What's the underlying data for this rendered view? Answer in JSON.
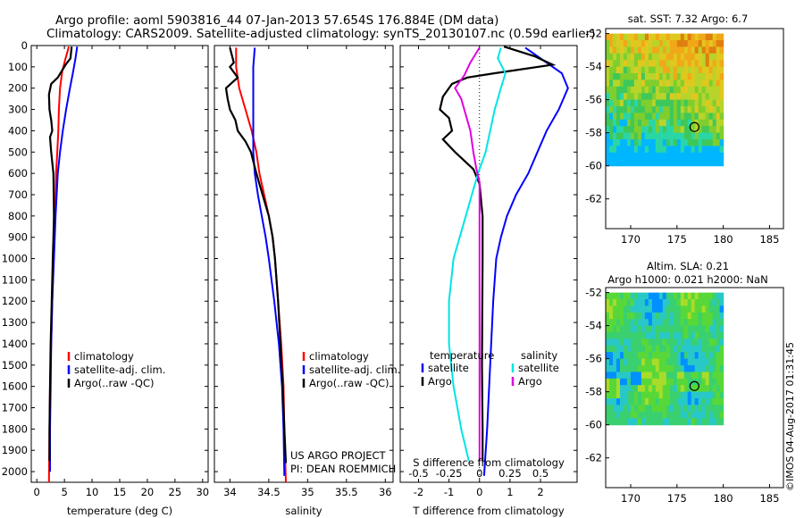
{
  "figure": {
    "title_line1": "Argo profile: aoml 5903816_44 07-Jan-2013 57.654S 176.884E (DM data)",
    "title_line2": "Climatology: CARS2009. Satellite-adjusted climatology: synTS_20130107.nc (0.59d earlier)",
    "credit": "©IMOS 04-Aug-2017 01:31:45",
    "project_line1": "US ARGO PROJECT",
    "project_line2": "PI: DEAN ROEMMICH"
  },
  "colors": {
    "climatology": "#ff0000",
    "satellite": "#0000ff",
    "argo": "#000000",
    "s_satellite": "#00e5e5",
    "s_argo": "#e000e0"
  },
  "chart_data": [
    {
      "type": "line",
      "title": "",
      "xlabel": "temperature (deg C)",
      "ylabel": "",
      "xlim": [
        -1,
        31
      ],
      "ylim": [
        2050,
        0
      ],
      "xticks": [
        "0",
        "5",
        "10",
        "15",
        "20",
        "25",
        "30"
      ],
      "yticks": [
        "0",
        "100",
        "200",
        "300",
        "400",
        "500",
        "600",
        "700",
        "800",
        "900",
        "1000",
        "1100",
        "1200",
        "1300",
        "1400",
        "1500",
        "1600",
        "1700",
        "1800",
        "1900",
        "2000"
      ],
      "legend": [
        "climatology",
        "satellite-adj. clim.",
        "Argo(..raw -QC)"
      ],
      "series": [
        {
          "name": "climatology",
          "color": "climatology",
          "points": [
            [
              5.8,
              5
            ],
            [
              5.2,
              60
            ],
            [
              4.6,
              120
            ],
            [
              4.2,
              200
            ],
            [
              4.0,
              300
            ],
            [
              3.9,
              400
            ],
            [
              3.7,
              500
            ],
            [
              3.5,
              600
            ],
            [
              3.3,
              800
            ],
            [
              3.0,
              1000
            ],
            [
              2.8,
              1200
            ],
            [
              2.6,
              1400
            ],
            [
              2.4,
              1600
            ],
            [
              2.3,
              1800
            ],
            [
              2.2,
              2050
            ]
          ]
        },
        {
          "name": "satellite-adj. clim.",
          "color": "satellite",
          "points": [
            [
              7.3,
              5
            ],
            [
              7.0,
              60
            ],
            [
              6.6,
              120
            ],
            [
              6.0,
              200
            ],
            [
              5.3,
              300
            ],
            [
              4.7,
              400
            ],
            [
              4.2,
              500
            ],
            [
              3.8,
              600
            ],
            [
              3.4,
              800
            ],
            [
              3.1,
              1000
            ],
            [
              2.8,
              1200
            ],
            [
              2.6,
              1400
            ],
            [
              2.5,
              1600
            ],
            [
              2.4,
              1800
            ],
            [
              2.4,
              2000
            ]
          ]
        },
        {
          "name": "Argo(..raw -QC)",
          "color": "argo",
          "points": [
            [
              6.3,
              5
            ],
            [
              6.1,
              60
            ],
            [
              5.2,
              90
            ],
            [
              3.8,
              150
            ],
            [
              2.6,
              180
            ],
            [
              2.2,
              230
            ],
            [
              2.3,
              300
            ],
            [
              2.6,
              350
            ],
            [
              2.8,
              400
            ],
            [
              2.4,
              430
            ],
            [
              2.6,
              500
            ],
            [
              3.0,
              600
            ],
            [
              3.1,
              800
            ],
            [
              3.0,
              900
            ],
            [
              2.9,
              1000
            ],
            [
              2.7,
              1200
            ],
            [
              2.5,
              1400
            ],
            [
              2.4,
              1600
            ],
            [
              2.3,
              1800
            ],
            [
              2.3,
              1950
            ]
          ]
        }
      ]
    },
    {
      "type": "line",
      "title": "",
      "xlabel": "salinity",
      "ylabel": "",
      "xlim": [
        33.8,
        36.1
      ],
      "ylim": [
        2050,
        0
      ],
      "xticks": [
        "34",
        "34.5",
        "35",
        "35.5",
        "36"
      ],
      "legend": [
        "climatology",
        "satellite-adj. clim.",
        "Argo(..raw -QC)"
      ],
      "series": [
        {
          "name": "climatology",
          "color": "climatology",
          "points": [
            [
              34.08,
              10
            ],
            [
              34.08,
              100
            ],
            [
              34.12,
              200
            ],
            [
              34.2,
              300
            ],
            [
              34.28,
              400
            ],
            [
              34.34,
              500
            ],
            [
              34.38,
              600
            ],
            [
              34.44,
              700
            ],
            [
              34.5,
              800
            ],
            [
              34.55,
              900
            ],
            [
              34.58,
              1000
            ],
            [
              34.62,
              1200
            ],
            [
              34.66,
              1400
            ],
            [
              34.69,
              1600
            ],
            [
              34.7,
              1800
            ],
            [
              34.72,
              2050
            ]
          ]
        },
        {
          "name": "satellite-adj. clim.",
          "color": "satellite",
          "points": [
            [
              34.32,
              10
            ],
            [
              34.3,
              100
            ],
            [
              34.3,
              200
            ],
            [
              34.3,
              300
            ],
            [
              34.3,
              400
            ],
            [
              34.3,
              500
            ],
            [
              34.32,
              600
            ],
            [
              34.36,
              700
            ],
            [
              34.41,
              800
            ],
            [
              34.46,
              900
            ],
            [
              34.5,
              1000
            ],
            [
              34.57,
              1200
            ],
            [
              34.63,
              1400
            ],
            [
              34.67,
              1600
            ],
            [
              34.69,
              1800
            ],
            [
              34.7,
              2020
            ]
          ]
        },
        {
          "name": "Argo(..raw -QC)",
          "color": "argo",
          "points": [
            [
              34.0,
              10
            ],
            [
              34.05,
              80
            ],
            [
              34.0,
              100
            ],
            [
              34.1,
              150
            ],
            [
              33.95,
              200
            ],
            [
              33.97,
              250
            ],
            [
              34.0,
              300
            ],
            [
              34.07,
              350
            ],
            [
              34.1,
              400
            ],
            [
              34.2,
              450
            ],
            [
              34.27,
              500
            ],
            [
              34.34,
              600
            ],
            [
              34.42,
              700
            ],
            [
              34.5,
              800
            ],
            [
              34.55,
              900
            ],
            [
              34.58,
              1000
            ],
            [
              34.62,
              1200
            ],
            [
              34.65,
              1400
            ],
            [
              34.68,
              1600
            ],
            [
              34.7,
              1800
            ],
            [
              34.72,
              1960
            ]
          ]
        }
      ]
    },
    {
      "type": "line",
      "title": "",
      "xlabel": "T difference from climatology",
      "xlabel_top": "S difference from climatology",
      "ylabel": "",
      "xlim": [
        -2.6,
        3.2
      ],
      "ylim": [
        2050,
        0
      ],
      "xticks": [
        "-2",
        "-1",
        "0",
        "1",
        "2"
      ],
      "xticks_top": [
        "-0.5",
        "-0.25",
        "0",
        "0.25",
        "0.5"
      ],
      "legend_groups": [
        {
          "title": "temperature",
          "items": [
            "satellite",
            "Argo"
          ]
        },
        {
          "title": "salinity",
          "items": [
            "satellite",
            "Argo"
          ]
        }
      ],
      "series": [
        {
          "name": "satellite",
          "group": "temperature",
          "color": "satellite",
          "points": [
            [
              1.5,
              10
            ],
            [
              2.0,
              60
            ],
            [
              2.7,
              130
            ],
            [
              2.9,
              200
            ],
            [
              2.6,
              300
            ],
            [
              2.2,
              400
            ],
            [
              1.9,
              500
            ],
            [
              1.6,
              600
            ],
            [
              1.2,
              700
            ],
            [
              0.9,
              800
            ],
            [
              0.7,
              900
            ],
            [
              0.55,
              1000
            ],
            [
              0.45,
              1200
            ],
            [
              0.35,
              1500
            ],
            [
              0.25,
              1800
            ],
            [
              0.15,
              2020
            ]
          ]
        },
        {
          "name": "Argo",
          "group": "temperature",
          "color": "argo",
          "points": [
            [
              0.8,
              5
            ],
            [
              1.8,
              50
            ],
            [
              2.4,
              90
            ],
            [
              0.5,
              130
            ],
            [
              -0.4,
              150
            ],
            [
              -0.9,
              180
            ],
            [
              -1.2,
              240
            ],
            [
              -1.3,
              300
            ],
            [
              -1.0,
              340
            ],
            [
              -0.9,
              400
            ],
            [
              -1.2,
              440
            ],
            [
              -0.8,
              500
            ],
            [
              -0.2,
              580
            ],
            [
              0.0,
              650
            ],
            [
              0.1,
              800
            ],
            [
              0.1,
              1000
            ],
            [
              0.08,
              1500
            ],
            [
              0.1,
              1800
            ],
            [
              0.1,
              1950
            ]
          ]
        },
        {
          "name": "satellite",
          "group": "salinity",
          "color": "s_satellite",
          "points": [
            [
              0.7,
              10
            ],
            [
              0.6,
              60
            ],
            [
              0.85,
              130
            ],
            [
              0.7,
              200
            ],
            [
              0.5,
              300
            ],
            [
              0.35,
              400
            ],
            [
              0.2,
              500
            ],
            [
              -0.05,
              600
            ],
            [
              -0.25,
              700
            ],
            [
              -0.45,
              800
            ],
            [
              -0.65,
              900
            ],
            [
              -0.85,
              1000
            ],
            [
              -1.0,
              1200
            ],
            [
              -1.0,
              1400
            ],
            [
              -0.85,
              1600
            ],
            [
              -0.6,
              1800
            ],
            [
              -0.35,
              1950
            ]
          ]
        },
        {
          "name": "Argo",
          "group": "salinity",
          "color": "s_argo",
          "points": [
            [
              0.0,
              10
            ],
            [
              -0.3,
              80
            ],
            [
              -0.5,
              140
            ],
            [
              -0.8,
              200
            ],
            [
              -0.6,
              250
            ],
            [
              -0.5,
              300
            ],
            [
              -0.4,
              350
            ],
            [
              -0.3,
              400
            ],
            [
              -0.25,
              450
            ],
            [
              -0.2,
              500
            ],
            [
              -0.1,
              580
            ],
            [
              0.0,
              640
            ],
            [
              0.0,
              800
            ],
            [
              0.0,
              1000
            ],
            [
              0.0,
              1500
            ],
            [
              0.0,
              1800
            ],
            [
              0.0,
              1950
            ]
          ]
        }
      ]
    },
    {
      "type": "heatmap",
      "title": "sat. SST: 7.32 Argo: 6.7",
      "xlim": [
        167.3,
        186.5
      ],
      "ylim": [
        -63.8,
        -51.7
      ],
      "xticks": [
        "170",
        "175",
        "180",
        "185"
      ],
      "yticks": [
        "-52",
        "-54",
        "-56",
        "-58",
        "-60",
        "-62"
      ],
      "map_extent": {
        "lon": [
          167.3,
          180
        ],
        "lat": [
          -60,
          -52
        ]
      },
      "argo_position": {
        "lon": 176.884,
        "lat": -57.654
      },
      "palette": [
        "#00b7ff",
        "#2ad6a6",
        "#3ec85a",
        "#7fce2e",
        "#b8d42a",
        "#e0c81e",
        "#f0a818",
        "#e07e10"
      ]
    },
    {
      "type": "heatmap",
      "title": "Altim. SLA: 0.21",
      "subtitle": "Argo h1000: 0.021 h2000: NaN",
      "xlim": [
        167.3,
        186.5
      ],
      "ylim": [
        -63.8,
        -51.7
      ],
      "xticks": [
        "170",
        "175",
        "180",
        "185"
      ],
      "yticks": [
        "-52",
        "-54",
        "-56",
        "-58",
        "-60",
        "-62"
      ],
      "map_extent": {
        "lon": [
          167.3,
          180
        ],
        "lat": [
          -60,
          -52
        ]
      },
      "argo_position": {
        "lon": 176.884,
        "lat": -57.654
      },
      "palette": [
        "#0090ff",
        "#28c8c8",
        "#3ad070",
        "#58d838",
        "#a8dc2a",
        "#e0c020",
        "#f09020"
      ]
    }
  ]
}
